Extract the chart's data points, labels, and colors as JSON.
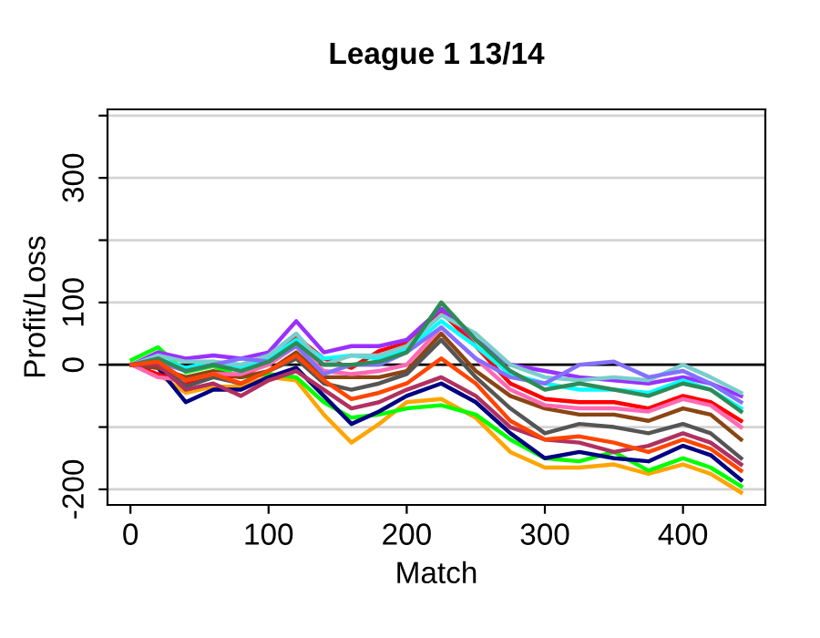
{
  "chart_data": {
    "type": "line",
    "title": "League 1 13/14",
    "xlabel": "Match",
    "ylabel": "Profit/Loss",
    "x": [
      1,
      20,
      40,
      60,
      80,
      100,
      120,
      140,
      160,
      180,
      200,
      225,
      250,
      275,
      300,
      325,
      350,
      375,
      400,
      420,
      442
    ],
    "xlim": [
      -16.6,
      459.6
    ],
    "xticks": [
      0,
      100,
      200,
      300,
      400
    ],
    "ylim": [
      -225,
      410
    ],
    "yticks": [
      -200,
      {
        "value": -100,
        "label": null
      },
      0,
      100,
      {
        "value": 200,
        "label": null
      },
      300,
      {
        "value": 400,
        "label": null
      }
    ],
    "grid": "y",
    "marker": "none",
    "line_style": "solid",
    "ref_lines": [
      {
        "axis": "y",
        "value": 0,
        "color": "#000000"
      }
    ],
    "series": [
      {
        "color": "#ffa500",
        "values": [
          0,
          -15,
          -45,
          -35,
          -35,
          -20,
          -25,
          -80,
          -125,
          -95,
          -60,
          -55,
          -85,
          -140,
          -165,
          -165,
          -160,
          -175,
          -160,
          -175,
          -205
        ]
      },
      {
        "color": "#00ff00",
        "values": [
          8,
          28,
          -12,
          -2,
          -20,
          -15,
          -20,
          -60,
          -85,
          -80,
          -70,
          -65,
          -80,
          -120,
          -150,
          -155,
          -140,
          -170,
          -150,
          -165,
          -195
        ]
      },
      {
        "color": "#000080",
        "values": [
          0,
          -5,
          -60,
          -40,
          -40,
          -20,
          -5,
          -50,
          -95,
          -75,
          -50,
          -30,
          -60,
          -110,
          -150,
          -140,
          -150,
          -155,
          -130,
          -145,
          -185
        ]
      },
      {
        "color": "#ff0000",
        "values": [
          0,
          -15,
          -30,
          -15,
          -20,
          5,
          45,
          10,
          -5,
          22,
          35,
          85,
          30,
          -30,
          -55,
          -60,
          -60,
          -70,
          -50,
          -60,
          -90
        ]
      },
      {
        "color": "#9b30ff",
        "values": [
          0,
          20,
          10,
          15,
          10,
          20,
          70,
          20,
          30,
          30,
          40,
          90,
          40,
          0,
          -10,
          -20,
          -25,
          -30,
          -20,
          -30,
          -50
        ]
      },
      {
        "color": "#00ffff",
        "values": [
          0,
          10,
          -5,
          5,
          -5,
          10,
          40,
          10,
          15,
          10,
          25,
          70,
          30,
          -15,
          -30,
          -40,
          -40,
          -45,
          -25,
          -40,
          -70
        ]
      },
      {
        "color": "#8b4513",
        "values": [
          0,
          -5,
          -20,
          -10,
          -20,
          -10,
          20,
          -20,
          -20,
          -20,
          -10,
          50,
          -10,
          -50,
          -70,
          -80,
          -80,
          -90,
          -70,
          -80,
          -120
        ]
      },
      {
        "color": "#ff69b4",
        "values": [
          0,
          -20,
          -25,
          -15,
          -15,
          0,
          30,
          -10,
          -15,
          -10,
          0,
          60,
          10,
          -40,
          -65,
          -70,
          -70,
          -75,
          -55,
          -65,
          -100
        ]
      },
      {
        "color": "#79cdcd",
        "values": [
          0,
          15,
          5,
          5,
          0,
          15,
          50,
          0,
          15,
          15,
          30,
          80,
          50,
          0,
          -20,
          -25,
          -20,
          -25,
          0,
          -20,
          -45
        ]
      },
      {
        "color": "#8470ff",
        "values": [
          0,
          5,
          -10,
          0,
          10,
          5,
          30,
          -15,
          0,
          0,
          20,
          60,
          10,
          -20,
          -30,
          0,
          5,
          -20,
          -10,
          -30,
          -60
        ]
      },
      {
        "color": "#2e8b57",
        "values": [
          0,
          10,
          -10,
          0,
          -10,
          5,
          35,
          0,
          0,
          5,
          20,
          100,
          40,
          -10,
          -40,
          -30,
          -40,
          -50,
          -30,
          -40,
          -75
        ]
      },
      {
        "color": "#555555",
        "values": [
          0,
          5,
          -35,
          -20,
          -30,
          -10,
          10,
          -30,
          -40,
          -30,
          -15,
          40,
          -20,
          -70,
          -110,
          -95,
          -100,
          -110,
          -95,
          -110,
          -150
        ]
      },
      {
        "color": "#b03060",
        "values": [
          0,
          0,
          -40,
          -30,
          -50,
          -25,
          -10,
          -40,
          -70,
          -60,
          -40,
          -20,
          -50,
          -100,
          -120,
          -125,
          -140,
          -130,
          -110,
          -125,
          -160
        ]
      },
      {
        "color": "#ff4500",
        "values": [
          0,
          5,
          -25,
          -15,
          -30,
          -10,
          15,
          -25,
          -55,
          -45,
          -30,
          10,
          -30,
          -90,
          -120,
          -115,
          -125,
          -140,
          -120,
          -135,
          -170
        ]
      }
    ]
  }
}
